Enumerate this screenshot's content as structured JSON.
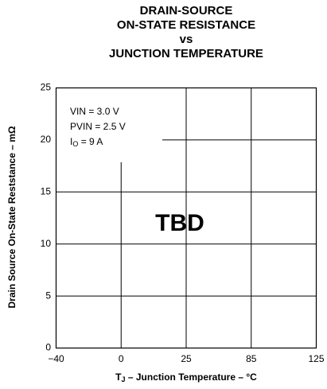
{
  "chart_data": {
    "type": "line",
    "title": [
      "DRAIN-SOURCE",
      "ON-STATE RESISTANCE",
      "vs",
      "JUNCTION TEMPERATURE"
    ],
    "y_label": "Drain Source On-State Reststance – mΩ",
    "x_label": {
      "main": "T",
      "sub": "J",
      "rest": " – Junction Temperature – °C"
    },
    "categories": [
      "−40",
      "0",
      "25",
      "85",
      "125"
    ],
    "ylim": [
      0,
      25
    ],
    "yticks": [
      0,
      5,
      10,
      15,
      20,
      25
    ],
    "grid": true,
    "annotations": {
      "conditions": [
        {
          "text": "VIN = 3.0 V"
        },
        {
          "text": "PVIN = 2.5 V"
        },
        {
          "main": "I",
          "sub": "O",
          "rest": " = 9 A"
        }
      ],
      "center": "TBD"
    },
    "series": []
  }
}
